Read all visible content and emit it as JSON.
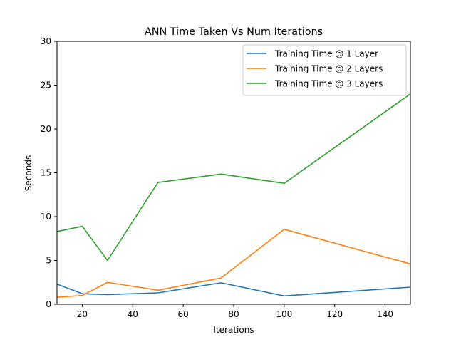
{
  "chart_data": {
    "type": "line",
    "title": "ANN Time Taken Vs Num Iterations",
    "xlabel": "Iterations",
    "ylabel": "Seconds",
    "xlim": [
      10,
      150
    ],
    "ylim": [
      0,
      30
    ],
    "xticks": [
      20,
      40,
      60,
      80,
      100,
      120,
      140
    ],
    "yticks": [
      0,
      5,
      10,
      15,
      20,
      25,
      30
    ],
    "grid": false,
    "legend_position": "top-right",
    "x": [
      10,
      20,
      30,
      50,
      75,
      100,
      150
    ],
    "series": [
      {
        "name": "Training Time @ 1 Layer",
        "color": "#1f77b4",
        "values": [
          2.3,
          1.2,
          1.1,
          1.3,
          2.45,
          0.95,
          1.95
        ]
      },
      {
        "name": "Training Time @ 2 Layers",
        "color": "#ff7f0e",
        "values": [
          0.8,
          1.0,
          2.5,
          1.6,
          3.0,
          8.55,
          4.6
        ]
      },
      {
        "name": "Training Time @ 3 Layers",
        "color": "#2ca02c",
        "values": [
          8.3,
          8.9,
          5.0,
          13.9,
          14.85,
          13.8,
          24.0
        ]
      }
    ]
  }
}
